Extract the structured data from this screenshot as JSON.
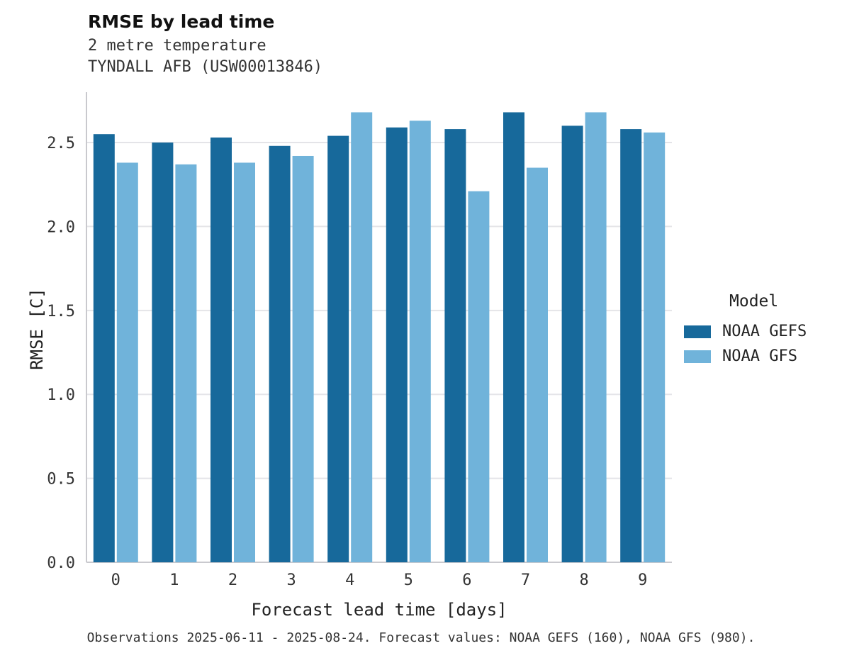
{
  "title": "RMSE by lead time",
  "subtitle_line1": "2 metre temperature",
  "subtitle_line2": "TYNDALL AFB (USW00013846)",
  "xlabel": "Forecast lead time [days]",
  "ylabel": "RMSE [C]",
  "caption": "Observations 2025-06-11 - 2025-08-24. Forecast values: NOAA GEFS (160), NOAA GFS (980).",
  "legend": {
    "title": "Model",
    "entries": [
      {
        "label": "NOAA GEFS",
        "color": "#17699b"
      },
      {
        "label": "NOAA GFS",
        "color": "#70b3da"
      }
    ]
  },
  "colors": {
    "gefs": "#17699b",
    "gfs": "#70b3da",
    "grid": "#e4e4e8",
    "spine": "#c9c9ce"
  },
  "chart_data": {
    "type": "bar",
    "title": "RMSE by lead time",
    "xlabel": "Forecast lead time [days]",
    "ylabel": "RMSE [C]",
    "categories": [
      "0",
      "1",
      "2",
      "3",
      "4",
      "5",
      "6",
      "7",
      "8",
      "9"
    ],
    "series": [
      {
        "name": "NOAA GEFS",
        "color": "#17699b",
        "values": [
          2.55,
          2.5,
          2.53,
          2.48,
          2.54,
          2.59,
          2.58,
          2.68,
          2.6,
          2.58
        ]
      },
      {
        "name": "NOAA GFS",
        "color": "#70b3da",
        "values": [
          2.38,
          2.37,
          2.38,
          2.42,
          2.68,
          2.63,
          2.21,
          2.35,
          2.68,
          2.56
        ]
      }
    ],
    "ylim": [
      0,
      2.8
    ],
    "yticks": [
      0.0,
      0.5,
      1.0,
      1.5,
      2.0,
      2.5
    ],
    "ytick_labels": [
      "0.0",
      "0.5",
      "1.0",
      "1.5",
      "2.0",
      "2.5"
    ],
    "grid": true,
    "legend_position": "right"
  }
}
